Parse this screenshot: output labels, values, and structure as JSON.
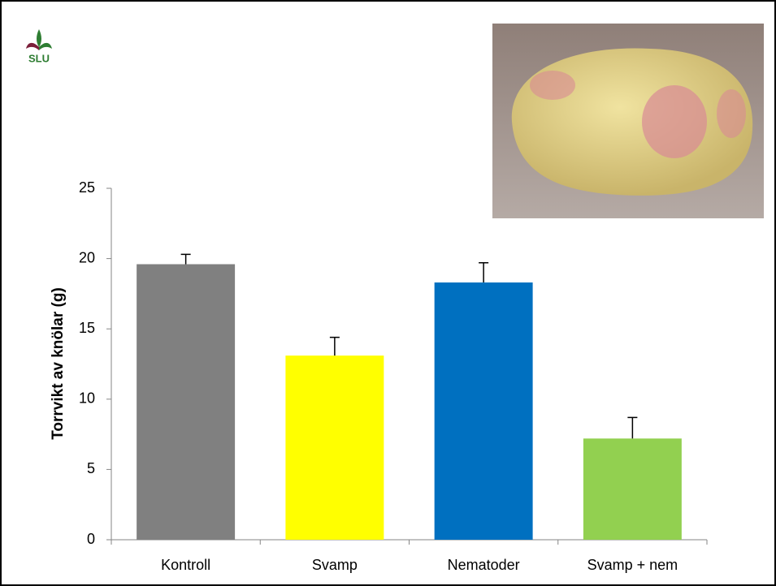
{
  "logo": "SLU",
  "chart_data": {
    "type": "bar",
    "y_label": "Torrvikt av knölar (g)",
    "categories": [
      "Kontroll",
      "Svamp",
      "Nematoder",
      "Svamp + nem"
    ],
    "values": [
      19.6,
      13.1,
      18.3,
      7.2
    ],
    "errors": [
      0.7,
      1.3,
      1.4,
      1.5
    ],
    "colors": [
      "#808080",
      "#ffff00",
      "#0070c0",
      "#92d050"
    ],
    "ylim": [
      0,
      25
    ],
    "yticks": [
      0,
      5,
      10,
      15,
      20,
      25
    ]
  }
}
